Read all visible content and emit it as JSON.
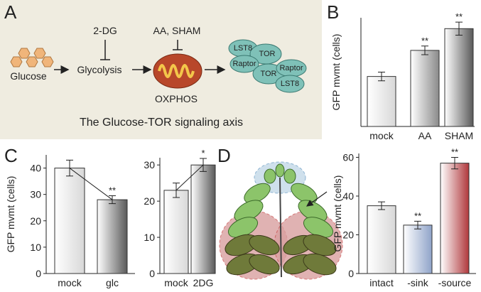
{
  "panel_labels": [
    "A",
    "B",
    "C",
    "D"
  ],
  "diagram": {
    "substrate": "Glucose",
    "pathway": "Glycolysis",
    "inhibitor1": "2-DG",
    "inhibitor2": "AA, SHAM",
    "organelle": "OXPHOS",
    "complex_labels": [
      "LST8",
      "TOR",
      "Raptor",
      "TOR",
      "Raptor",
      "LST8"
    ],
    "caption": "The Glucose-TOR signaling axis"
  },
  "chart_data": [
    {
      "type": "bar",
      "ylabel": "GFP mvmt (cells)",
      "categories": [
        "mock",
        "AA",
        "SHAM"
      ],
      "values": [
        23,
        35,
        45
      ],
      "errors": [
        2,
        2,
        3
      ],
      "significance": [
        null,
        "**",
        "**"
      ],
      "colors": [
        "#d8d8d8",
        "#8a8a8a",
        "#5a5a5a"
      ],
      "ylim": [
        0,
        50
      ]
    },
    {
      "type": "bar",
      "ylabel": "GFP mvmt (cells)",
      "categories": [
        "mock",
        "glc"
      ],
      "values": [
        40,
        28
      ],
      "errors": [
        3,
        1.5
      ],
      "significance": [
        null,
        "**"
      ],
      "colors": [
        "#d8d8d8",
        "#5a5a5a"
      ],
      "ylim": [
        0,
        45
      ],
      "yticks": [
        0,
        10,
        20,
        30,
        40
      ],
      "connector": true
    },
    {
      "type": "bar",
      "categories": [
        "mock",
        "2DG"
      ],
      "values": [
        23,
        30
      ],
      "errors": [
        2,
        1.8
      ],
      "significance": [
        null,
        "*"
      ],
      "colors": [
        "#d8d8d8",
        "#5a5a5a"
      ],
      "ylim": [
        0,
        32
      ],
      "yticks": [
        0,
        10,
        20,
        30
      ],
      "connector": true
    },
    {
      "type": "bar",
      "ylabel": "GFP mvmt (cells)",
      "categories": [
        "intact",
        "-sink",
        "-source"
      ],
      "values": [
        35,
        25,
        57
      ],
      "errors": [
        2,
        2,
        3
      ],
      "significance": [
        null,
        "**",
        "**"
      ],
      "colors": [
        "#d8d8d8",
        "#8fa3c9",
        "#b0383c"
      ],
      "ylim": [
        0,
        62
      ],
      "yticks": [
        0,
        20,
        40,
        60
      ]
    }
  ]
}
